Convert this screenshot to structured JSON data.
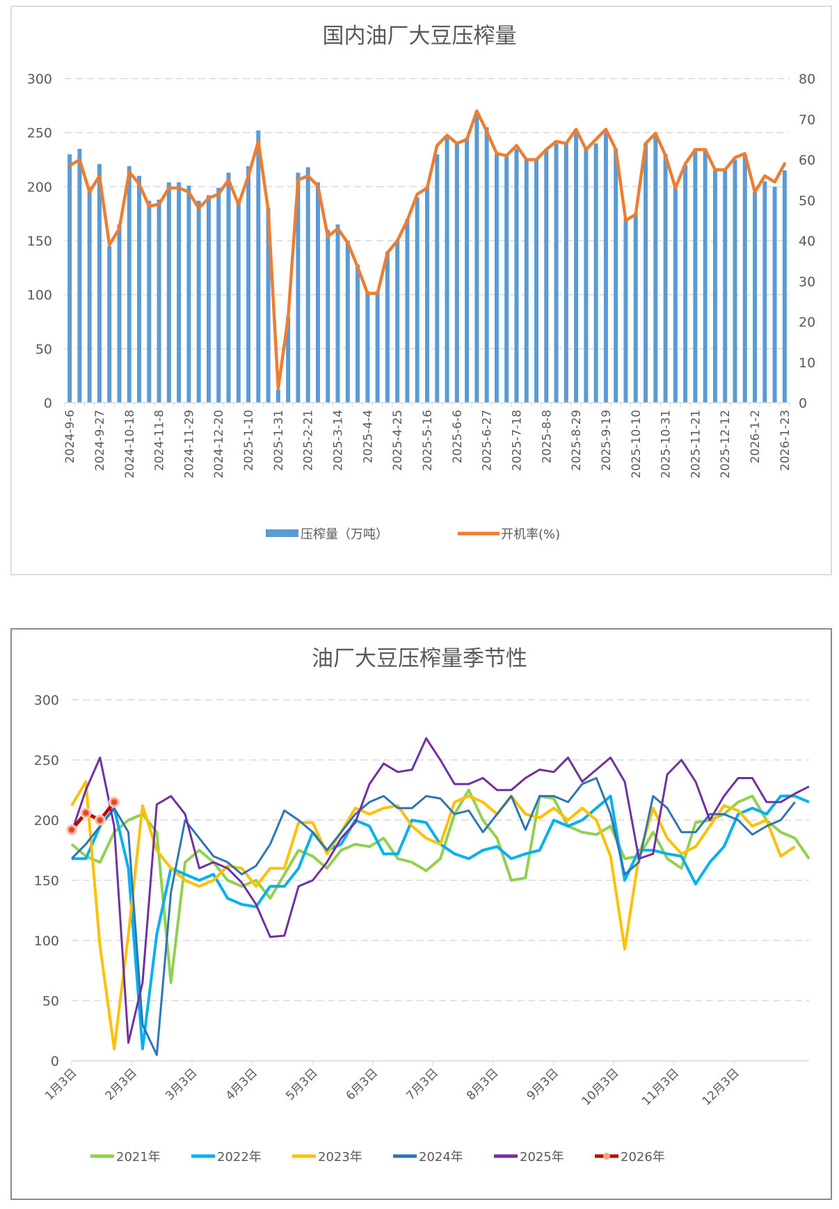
{
  "chart_data": [
    {
      "type": "bar+line",
      "title": "国内油厂大豆压榨量",
      "xlabel": "",
      "ylabel_left": "",
      "ylabel_right": "",
      "ylim_left": [
        0,
        300
      ],
      "ylim_right": [
        0,
        80
      ],
      "yticks_left": [
        "0",
        "50",
        "100",
        "150",
        "200",
        "250",
        "300"
      ],
      "yticks_right": [
        "0",
        "10",
        "20",
        "30",
        "40",
        "50",
        "60",
        "70",
        "80"
      ],
      "grid": true,
      "legend_position": "bottom",
      "x_tick_labels": [
        "2024-9-6",
        "2024-9-27",
        "2024-10-18",
        "2024-11-8",
        "2024-11-29",
        "2024-12-20",
        "2025-1-10",
        "2025-1-31",
        "2025-2-21",
        "2025-3-14",
        "2025-4-4",
        "2025-4-25",
        "2025-5-16",
        "2025-6-6",
        "2025-6-27",
        "2025-7-18",
        "2025-8-8",
        "2025-8-29",
        "2025-9-19",
        "2025-10-10",
        "2025-10-31",
        "2025-11-21",
        "2025-12-12",
        "2026-1-2",
        "2026-1-23"
      ],
      "series": [
        {
          "name": "压榨量（万吨）",
          "type": "bar",
          "axis": "left",
          "color": "#5b9bd5",
          "values": [
            230,
            235,
            200,
            221,
            145,
            165,
            219,
            210,
            187,
            188,
            204,
            204,
            201,
            187,
            192,
            199,
            213,
            187,
            219,
            252,
            180,
            12,
            80,
            213,
            218,
            204,
            160,
            165,
            150,
            128,
            103,
            103,
            140,
            150,
            170,
            190,
            200,
            230,
            245,
            240,
            245,
            270,
            255,
            230,
            228,
            235,
            225,
            225,
            235,
            240,
            240,
            250,
            235,
            240,
            250,
            235,
            170,
            175,
            240,
            250,
            230,
            200,
            220,
            235,
            235,
            215,
            215,
            225,
            230,
            195,
            205,
            200,
            215
          ]
        },
        {
          "name": "开机率(%)",
          "type": "line",
          "axis": "right",
          "color": "#ed7d31",
          "values": [
            58.5,
            60,
            52,
            56,
            39,
            43,
            57,
            54,
            48.5,
            49,
            53,
            53,
            52,
            48,
            50.5,
            51.5,
            55,
            49,
            56,
            64.5,
            47.5,
            3.5,
            21,
            55,
            56,
            53.5,
            41,
            43,
            39.5,
            33.5,
            27,
            27,
            37,
            40,
            45,
            51.5,
            53,
            63.5,
            66,
            64,
            65,
            72,
            67,
            61.5,
            61,
            63.5,
            60,
            60,
            62.5,
            64.5,
            64,
            67.5,
            62.5,
            65,
            67.5,
            62.5,
            45,
            46.5,
            64,
            66.5,
            61,
            53,
            59,
            62.5,
            62.5,
            57.5,
            57.5,
            60.5,
            61.5,
            52,
            56,
            54.5,
            59
          ]
        }
      ]
    },
    {
      "type": "line",
      "title": "油厂大豆压榨量季节性",
      "xlabel": "",
      "ylabel": "",
      "ylim": [
        0,
        300
      ],
      "yticks": [
        "0",
        "50",
        "100",
        "150",
        "200",
        "250",
        "300"
      ],
      "grid": true,
      "legend_position": "bottom",
      "x_tick_labels": [
        "1月3日",
        "2月3日",
        "3月3日",
        "4月3日",
        "5月3日",
        "6月3日",
        "7月3日",
        "8月3日",
        "9月3日",
        "10月3日",
        "11月3日",
        "12月3日"
      ],
      "x_range_weeks": [
        1,
        52
      ],
      "series": [
        {
          "name": "2021年",
          "color": "#92d050",
          "values": [
            180,
            170,
            165,
            190,
            200,
            205,
            190,
            65,
            165,
            175,
            165,
            150,
            145,
            150,
            135,
            155,
            175,
            170,
            160,
            175,
            180,
            178,
            185,
            168,
            165,
            158,
            168,
            205,
            225,
            200,
            185,
            150,
            152,
            220,
            218,
            195,
            190,
            188,
            195,
            168,
            170,
            190,
            168,
            160,
            198,
            200,
            205,
            215,
            220,
            200,
            190,
            185,
            168
          ]
        },
        {
          "name": "2022年",
          "color": "#00b0f0",
          "values": [
            168,
            168,
            195,
            210,
            160,
            10,
            105,
            160,
            155,
            150,
            155,
            135,
            130,
            128,
            145,
            145,
            160,
            190,
            175,
            180,
            200,
            195,
            172,
            172,
            200,
            198,
            180,
            172,
            168,
            175,
            178,
            168,
            172,
            175,
            200,
            195,
            200,
            210,
            220,
            150,
            175,
            175,
            172,
            170,
            147,
            165,
            178,
            205,
            210,
            205,
            220,
            220,
            215
          ]
        },
        {
          "name": "2023年",
          "color": "#ffc000",
          "values": [
            212,
            232,
            95,
            10,
            105,
            212,
            175,
            160,
            150,
            145,
            150,
            162,
            160,
            145,
            160,
            160,
            198,
            198,
            172,
            190,
            210,
            205,
            210,
            212,
            195,
            185,
            180,
            215,
            220,
            215,
            205,
            220,
            205,
            202,
            210,
            200,
            210,
            200,
            170,
            93,
            170,
            210,
            185,
            172,
            178,
            195,
            212,
            208,
            195,
            200,
            170,
            178
          ]
        },
        {
          "name": "2024年",
          "color": "#2e75b6",
          "values": [
            168,
            180,
            195,
            210,
            190,
            30,
            5,
            140,
            200,
            185,
            170,
            165,
            155,
            162,
            180,
            208,
            200,
            190,
            175,
            190,
            205,
            215,
            220,
            210,
            210,
            220,
            218,
            205,
            208,
            190,
            205,
            220,
            192,
            220,
            220,
            215,
            230,
            235,
            205,
            155,
            165,
            220,
            210,
            190,
            190,
            205,
            205,
            200,
            188,
            195,
            200,
            215
          ]
        },
        {
          "name": "2025年",
          "color": "#7030a0",
          "values": [
            190,
            225,
            252,
            195,
            15,
            65,
            213,
            220,
            205,
            160,
            165,
            160,
            148,
            130,
            103,
            104,
            145,
            150,
            165,
            185,
            198,
            230,
            247,
            240,
            242,
            268,
            250,
            230,
            230,
            235,
            225,
            225,
            235,
            242,
            240,
            252,
            232,
            242,
            252,
            232,
            168,
            172,
            238,
            250,
            232,
            200,
            220,
            235,
            235,
            215,
            215,
            222,
            228
          ]
        },
        {
          "name": "2026年",
          "color": "#c00000",
          "marker": true,
          "values": [
            192,
            206,
            200,
            215
          ]
        }
      ]
    }
  ]
}
